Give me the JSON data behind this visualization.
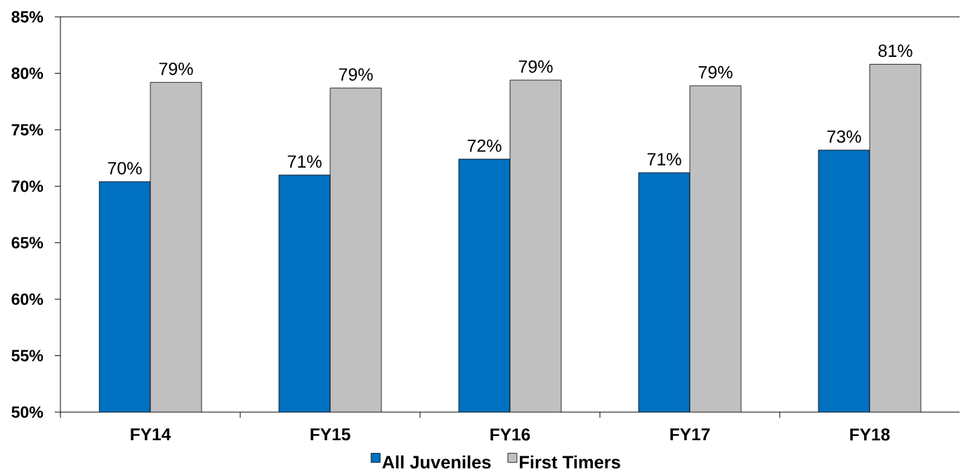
{
  "chart_data": {
    "type": "bar",
    "categories": [
      "FY14",
      "FY15",
      "FY16",
      "FY17",
      "FY18"
    ],
    "series": [
      {
        "name": "All Juveniles",
        "color": "#0070c0",
        "values": [
          70.4,
          71.0,
          72.4,
          71.2,
          73.2
        ],
        "value_labels": [
          "70%",
          "71%",
          "72%",
          "71%",
          "73%"
        ]
      },
      {
        "name": "First Timers",
        "color": "#c0c0c0",
        "values": [
          79.2,
          78.7,
          79.4,
          78.9,
          80.8
        ],
        "value_labels": [
          "79%",
          "79%",
          "79%",
          "79%",
          "81%"
        ]
      }
    ],
    "ylim": [
      50,
      85
    ],
    "yticks": [
      {
        "value": 50,
        "label": "50%"
      },
      {
        "value": 55,
        "label": "55%"
      },
      {
        "value": 60,
        "label": "60%"
      },
      {
        "value": 65,
        "label": "65%"
      },
      {
        "value": 70,
        "label": "70%"
      },
      {
        "value": 75,
        "label": "75%"
      },
      {
        "value": 80,
        "label": "80%"
      },
      {
        "value": 85,
        "label": "85%"
      }
    ],
    "legend": "bottom"
  }
}
